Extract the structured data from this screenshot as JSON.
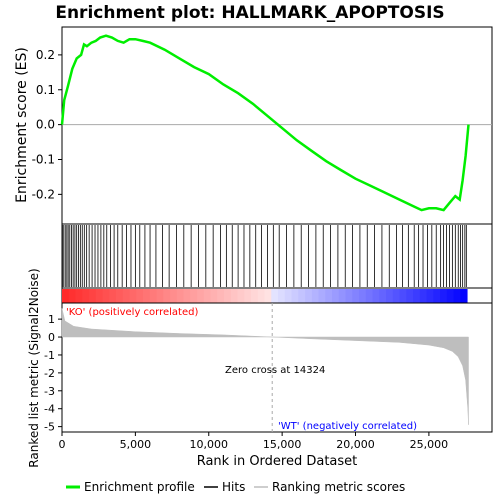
{
  "title": "Enrichment plot: HALLMARK_APOPTOSIS",
  "colors": {
    "profile": "#00ee00",
    "hits": "#000000",
    "metric": "#bebebe",
    "ko_label": "#ff0000",
    "wt_label": "#0000ff",
    "zero_line": "#aaaaaa"
  },
  "es_panel": {
    "ylabel": "Enrichment score (ES)",
    "ylim": [
      -0.285,
      0.28
    ],
    "yticks": [
      "0.2",
      "0.1",
      "0.0",
      "-0.1",
      "-0.2"
    ],
    "ytick_values": [
      0.2,
      0.1,
      0.0,
      -0.1,
      -0.2
    ]
  },
  "metric_panel": {
    "ylabel": "Ranked list metric (Signal2Noise)",
    "ylim": [
      -5.3,
      1.9
    ],
    "yticks": [
      "1",
      "0",
      "-1",
      "-2",
      "-3",
      "-4",
      "-5"
    ],
    "ytick_values": [
      1,
      0,
      -1,
      -2,
      -3,
      -4,
      -5
    ],
    "ko_label": "'KO' (positively correlated)",
    "wt_label": "'WT' (negatively correlated)",
    "zero_cross_label": "Zero cross at 14324",
    "zero_cross": 14324
  },
  "xaxis": {
    "xlabel": "Rank in Ordered Dataset",
    "xlim": [
      0,
      29300
    ],
    "xticks": [
      "0",
      "5,000",
      "10,000",
      "15,000",
      "20,000",
      "25,000"
    ],
    "xtick_values": [
      0,
      5000,
      10000,
      15000,
      20000,
      25000
    ]
  },
  "legend": {
    "profile": "Enrichment profile",
    "hits": "Hits",
    "metric": "Ranking metric scores"
  },
  "chart_data": {
    "type": "line",
    "n_genes": 27600,
    "series": [
      {
        "name": "Enrichment profile",
        "x": [
          0,
          150,
          400,
          700,
          1000,
          1300,
          1500,
          1700,
          2000,
          2300,
          2600,
          3000,
          3400,
          3800,
          4200,
          4600,
          5000,
          5500,
          6000,
          7000,
          8000,
          9000,
          10000,
          11000,
          12000,
          13000,
          14000,
          15000,
          16000,
          17000,
          18000,
          19000,
          20000,
          21000,
          22000,
          23000,
          24000,
          24500,
          25000,
          25500,
          26000,
          26400,
          26800,
          27100,
          27300,
          27500,
          27700
        ],
        "y": [
          0.0,
          0.07,
          0.11,
          0.16,
          0.19,
          0.2,
          0.23,
          0.225,
          0.235,
          0.24,
          0.25,
          0.255,
          0.25,
          0.24,
          0.235,
          0.245,
          0.245,
          0.24,
          0.235,
          0.215,
          0.19,
          0.165,
          0.145,
          0.115,
          0.09,
          0.06,
          0.025,
          -0.01,
          -0.045,
          -0.075,
          -0.105,
          -0.13,
          -0.155,
          -0.175,
          -0.195,
          -0.215,
          -0.235,
          -0.245,
          -0.24,
          -0.24,
          -0.245,
          -0.225,
          -0.205,
          -0.215,
          -0.16,
          -0.09,
          0.0
        ]
      },
      {
        "name": "Ranking metric scores",
        "x": [
          0,
          200,
          800,
          2000,
          5000,
          8000,
          11000,
          14324,
          17000,
          20000,
          23000,
          25000,
          26000,
          26600,
          27000,
          27300,
          27500,
          27650,
          27700
        ],
        "y": [
          1.6,
          0.9,
          0.6,
          0.45,
          0.3,
          0.2,
          0.12,
          0.0,
          -0.1,
          -0.2,
          -0.3,
          -0.45,
          -0.6,
          -0.8,
          -1.1,
          -1.6,
          -2.4,
          -4.0,
          -4.9
        ]
      }
    ],
    "hit_ranks": [
      30,
      120,
      220,
      330,
      420,
      530,
      640,
      760,
      880,
      1000,
      1120,
      1250,
      1380,
      1520,
      1680,
      1850,
      2050,
      2250,
      2450,
      2650,
      2850,
      3050,
      3300,
      3550,
      3800,
      4100,
      4400,
      4700,
      5000,
      5300,
      5650,
      6000,
      6400,
      6850,
      7300,
      7800,
      8300,
      8800,
      9300,
      9800,
      10300,
      10800,
      11200,
      11600,
      12000,
      12400,
      12800,
      13200,
      13600,
      14000,
      14400,
      14800,
      15300,
      15800,
      16300,
      16800,
      17300,
      17800,
      18300,
      18800,
      19300,
      19800,
      20300,
      20800,
      21300,
      21800,
      22300,
      22800,
      23200,
      23600,
      24000,
      24300,
      24600,
      24900,
      25200,
      25500,
      25800,
      26000,
      26200,
      26400,
      26600,
      26800,
      27000,
      27150,
      27300,
      27450,
      27550
    ]
  }
}
